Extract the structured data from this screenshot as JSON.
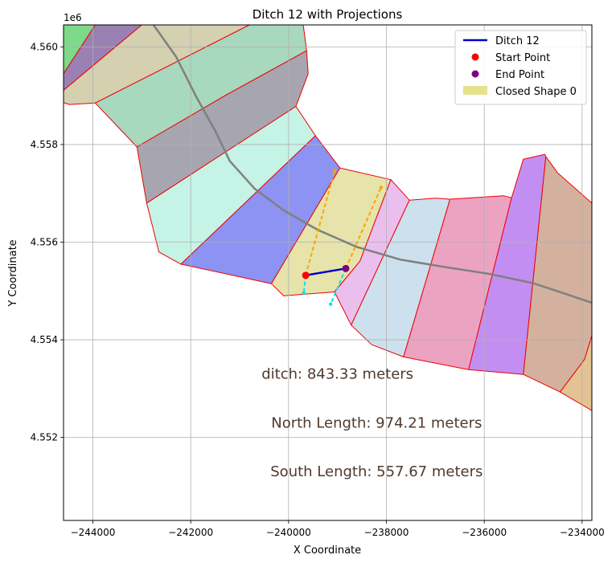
{
  "chart_data": {
    "type": "line",
    "title": "Ditch 12 with Projections",
    "xlabel": "X Coordinate",
    "ylabel": "Y Coordinate",
    "y_offset_label": "1e6",
    "xlim": [
      -244600,
      -233800
    ],
    "ylim": [
      4550300,
      4560450
    ],
    "grid": true,
    "legend_placement": "top-right",
    "x_ticks": [
      -244000,
      -242000,
      -240000,
      -238000,
      -236000,
      -234000
    ],
    "x_tick_labels": [
      "−244000",
      "−242000",
      "−240000",
      "−238000",
      "−236000",
      "−234000"
    ],
    "y_ticks": [
      4552000,
      4554000,
      4556000,
      4558000,
      4560000
    ],
    "y_tick_labels": [
      "4.552",
      "4.554",
      "4.556",
      "4.558",
      "4.560"
    ],
    "legend": [
      {
        "label": "Ditch 12",
        "kind": "line",
        "color": "#0000cc"
      },
      {
        "label": "Start Point",
        "kind": "marker",
        "color": "#ff0000"
      },
      {
        "label": "End Point",
        "kind": "marker",
        "color": "#800080"
      },
      {
        "label": "Closed Shape 0",
        "kind": "patch",
        "color": "#e4e28f"
      }
    ],
    "ditch": {
      "name": "Ditch 12",
      "color": "#0000cc",
      "points": [
        [
          -239650,
          4555320
        ],
        [
          -238830,
          4555460
        ]
      ]
    },
    "start_point": {
      "x": -239650,
      "y": 4555320,
      "color": "#ff0000"
    },
    "end_point": {
      "x": -238830,
      "y": 4555460,
      "color": "#800080"
    },
    "projections": [
      {
        "color": "#ffa500",
        "points": [
          [
            -239650,
            4555320
          ],
          [
            -239060,
            4557460
          ]
        ]
      },
      {
        "color": "#ffa500",
        "points": [
          [
            -238830,
            4555460
          ],
          [
            -238110,
            4557120
          ]
        ]
      },
      {
        "color": "#00e5ee",
        "points": [
          [
            -239650,
            4555320
          ],
          [
            -239690,
            4554960
          ]
        ]
      },
      {
        "color": "#00e5ee",
        "points": [
          [
            -238830,
            4555460
          ],
          [
            -239140,
            4554730
          ]
        ]
      }
    ],
    "centerline": {
      "color": "#808080",
      "points": [
        [
          -242760,
          4560450
        ],
        [
          -242300,
          4559800
        ],
        [
          -241900,
          4559000
        ],
        [
          -241500,
          4558280
        ],
        [
          -241200,
          4557660
        ],
        [
          -240700,
          4557100
        ],
        [
          -240100,
          4556650
        ],
        [
          -239400,
          4556250
        ],
        [
          -238600,
          4555900
        ],
        [
          -237700,
          4555640
        ],
        [
          -236800,
          4555490
        ],
        [
          -235900,
          4555350
        ],
        [
          -235000,
          4555160
        ],
        [
          -234400,
          4554960
        ],
        [
          -233800,
          4554760
        ]
      ]
    },
    "polygons": [
      {
        "color": "#7ed98a",
        "points": [
          [
            -244600,
            4560450
          ],
          [
            -243950,
            4560450
          ],
          [
            -244600,
            4559450
          ]
        ]
      },
      {
        "color": "#9b80b4",
        "points": [
          [
            -243950,
            4560450
          ],
          [
            -243000,
            4560450
          ],
          [
            -244600,
            4559110
          ],
          [
            -244600,
            4559450
          ]
        ]
      },
      {
        "color": "#d4d0b0",
        "points": [
          [
            -243000,
            4560450
          ],
          [
            -240800,
            4560450
          ],
          [
            -243950,
            4558850
          ],
          [
            -244480,
            4558820
          ],
          [
            -244600,
            4558860
          ],
          [
            -244600,
            4559110
          ]
        ]
      },
      {
        "color": "#a8d8bd",
        "points": [
          [
            -240800,
            4560450
          ],
          [
            -239700,
            4560450
          ],
          [
            -239630,
            4559920
          ],
          [
            -241300,
            4559000
          ],
          [
            -243100,
            4557950
          ],
          [
            -243950,
            4558850
          ]
        ]
      },
      {
        "color": "#a7a5b0",
        "points": [
          [
            -239630,
            4559920
          ],
          [
            -239600,
            4559450
          ],
          [
            -239850,
            4558780
          ],
          [
            -242900,
            4556800
          ],
          [
            -243100,
            4557950
          ],
          [
            -241300,
            4559000
          ]
        ]
      },
      {
        "color": "#c5f3e5",
        "points": [
          [
            -239850,
            4558780
          ],
          [
            -239450,
            4558180
          ],
          [
            -242200,
            4555550
          ],
          [
            -242650,
            4555800
          ],
          [
            -242900,
            4556800
          ]
        ]
      },
      {
        "color": "#8c93f2",
        "points": [
          [
            -239450,
            4558180
          ],
          [
            -238950,
            4557520
          ],
          [
            -240350,
            4555150
          ],
          [
            -242200,
            4555550
          ]
        ]
      },
      {
        "color": "#e6e3ab",
        "points": [
          [
            -238950,
            4557520
          ],
          [
            -237910,
            4557280
          ],
          [
            -238540,
            4555610
          ],
          [
            -239060,
            4554980
          ],
          [
            -239750,
            4554930
          ],
          [
            -240100,
            4554900
          ],
          [
            -240350,
            4555150
          ]
        ]
      },
      {
        "color": "#eabfee",
        "points": [
          [
            -237910,
            4557280
          ],
          [
            -237530,
            4556860
          ],
          [
            -238720,
            4554300
          ],
          [
            -239060,
            4554980
          ],
          [
            -238540,
            4555610
          ]
        ]
      },
      {
        "color": "#cde0ee",
        "points": [
          [
            -237530,
            4556860
          ],
          [
            -237000,
            4556900
          ],
          [
            -236700,
            4556880
          ],
          [
            -237650,
            4553650
          ],
          [
            -238300,
            4553900
          ],
          [
            -238720,
            4554300
          ]
        ]
      },
      {
        "color": "#eca3c1",
        "points": [
          [
            -236700,
            4556880
          ],
          [
            -235600,
            4556950
          ],
          [
            -235440,
            4556910
          ],
          [
            -236320,
            4553390
          ],
          [
            -237650,
            4553650
          ]
        ]
      },
      {
        "color": "#c38ef2",
        "points": [
          [
            -235440,
            4556910
          ],
          [
            -235200,
            4557700
          ],
          [
            -234760,
            4557800
          ],
          [
            -234740,
            4557750
          ],
          [
            -235200,
            4553290
          ],
          [
            -236320,
            4553390
          ]
        ]
      },
      {
        "color": "#d3b19e",
        "points": [
          [
            -234740,
            4557750
          ],
          [
            -234500,
            4557420
          ],
          [
            -233800,
            4556800
          ],
          [
            -233800,
            4554080
          ],
          [
            -233950,
            4553600
          ],
          [
            -234450,
            4552930
          ],
          [
            -235200,
            4553290
          ]
        ]
      },
      {
        "color": "#e3c394",
        "points": [
          [
            -233800,
            4554080
          ],
          [
            -233800,
            4552550
          ],
          [
            -234450,
            4552930
          ],
          [
            -233950,
            4553600
          ]
        ]
      }
    ],
    "annotations": [
      {
        "text": "ditch: 843.33 meters",
        "x": -239000,
        "y": 4553300
      },
      {
        "text": "North Length: 974.21 meters",
        "x": -238200,
        "y": 4552300
      },
      {
        "text": "South Length: 557.67 meters",
        "x": -238200,
        "y": 4551300
      }
    ],
    "annotation_color": "#4f3a2e"
  }
}
